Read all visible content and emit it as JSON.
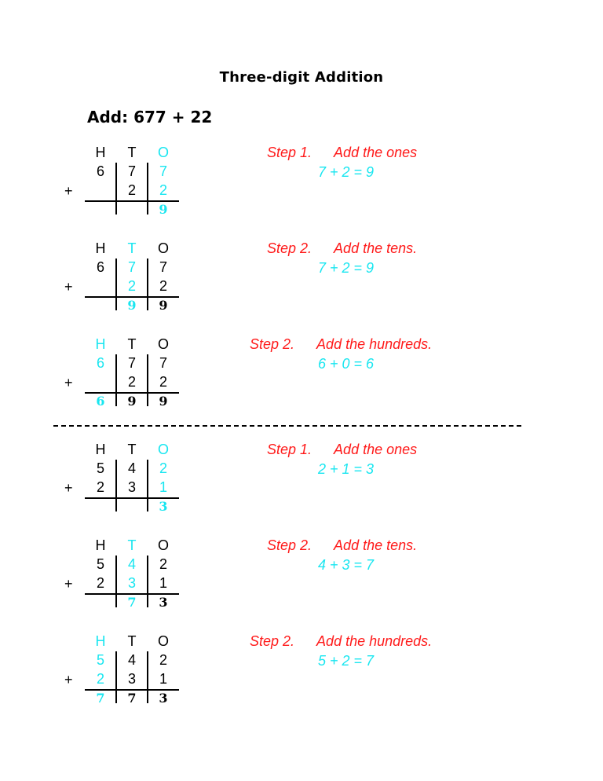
{
  "title": "Three-digit Addition",
  "subtitle": "Add: 677 + 22",
  "blocks": [
    {
      "headers": [
        "H",
        "T",
        "O"
      ],
      "top": [
        "6",
        "7",
        "7"
      ],
      "bottom": [
        "",
        "2",
        "2"
      ],
      "result": [
        "",
        "",
        "9"
      ],
      "highlight": 2,
      "step": "Step 1.",
      "desc": "Add the ones",
      "equation": "7 + 2 = 9"
    },
    {
      "headers": [
        "H",
        "T",
        "O"
      ],
      "top": [
        "6",
        "7",
        "7"
      ],
      "bottom": [
        "",
        "2",
        "2"
      ],
      "result": [
        "",
        "9",
        "9"
      ],
      "highlight": 1,
      "step": "Step 2.",
      "desc": "Add the tens.",
      "equation": "7 + 2 = 9"
    },
    {
      "headers": [
        "H",
        "T",
        "O"
      ],
      "top": [
        "6",
        "7",
        "7"
      ],
      "bottom": [
        "",
        "2",
        "2"
      ],
      "result": [
        "6",
        "9",
        "9"
      ],
      "highlight": 0,
      "step": "Step 2.",
      "desc": "Add the hundreds.",
      "equation": "6 + 0 = 6"
    },
    {
      "headers": [
        "H",
        "T",
        "O"
      ],
      "top": [
        "5",
        "4",
        "2"
      ],
      "bottom": [
        "2",
        "3",
        "1"
      ],
      "result": [
        "",
        "",
        "3"
      ],
      "highlight": 2,
      "step": "Step 1.",
      "desc": "Add the ones",
      "equation": "2 + 1 = 3"
    },
    {
      "headers": [
        "H",
        "T",
        "O"
      ],
      "top": [
        "5",
        "4",
        "2"
      ],
      "bottom": [
        "2",
        "3",
        "1"
      ],
      "result": [
        "",
        "7",
        "3"
      ],
      "highlight": 1,
      "step": "Step 2.",
      "desc": "Add the tens.",
      "equation": "4 + 3 = 7"
    },
    {
      "headers": [
        "H",
        "T",
        "O"
      ],
      "top": [
        "5",
        "4",
        "2"
      ],
      "bottom": [
        "2",
        "3",
        "1"
      ],
      "result": [
        "7",
        "7",
        "3"
      ],
      "highlight": 0,
      "step": "Step 2.",
      "desc": "Add the hundreds.",
      "equation": "5 + 2 = 7"
    }
  ],
  "plus_sign": "+",
  "colors": {
    "highlight": "#19e6f0",
    "step": "#ff1a1a",
    "text": "#000000"
  }
}
